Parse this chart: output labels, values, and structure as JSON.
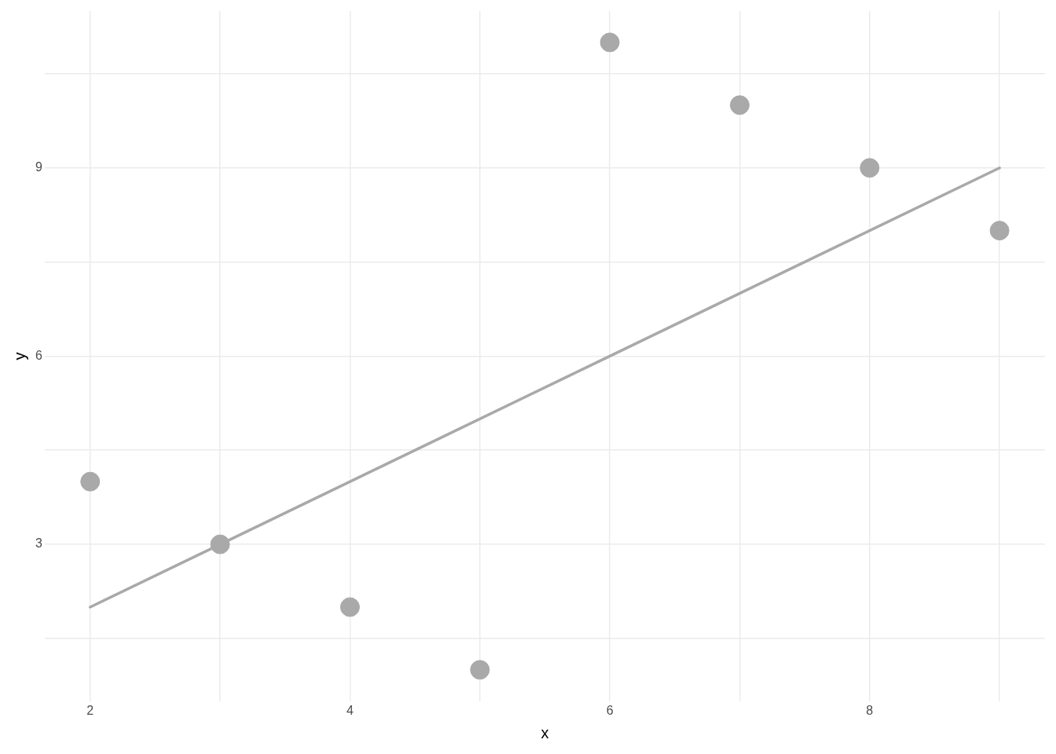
{
  "chart_data": {
    "type": "scatter",
    "xlabel": "x",
    "ylabel": "y",
    "xlim": [
      1.65,
      9.35
    ],
    "ylim": [
      0.5,
      11.5
    ],
    "xticks": [
      2,
      {
        "value": 3,
        "label": null
      },
      4,
      {
        "value": 5,
        "label": null
      },
      6,
      {
        "value": 7,
        "label": null
      },
      8,
      {
        "value": 9,
        "label": null
      }
    ],
    "yticks": [
      {
        "value": 1.5,
        "label": null
      },
      3,
      {
        "value": 4.5,
        "label": null
      },
      6,
      {
        "value": 7.5,
        "label": null
      },
      9,
      {
        "value": 10.5,
        "label": null
      }
    ],
    "grid": true,
    "legend": false,
    "marker": "circle",
    "series": [
      {
        "type": "scatter",
        "color": "#a9a9a9",
        "x": [
          2,
          3,
          4,
          5,
          6,
          7,
          8,
          9
        ],
        "values": [
          4,
          3,
          2,
          1,
          11,
          10,
          9,
          8
        ]
      },
      {
        "type": "line",
        "color": "#a9a9a9",
        "x": [
          2,
          9
        ],
        "values": [
          2,
          9
        ],
        "marker": "none",
        "line_style": "solid"
      }
    ]
  }
}
